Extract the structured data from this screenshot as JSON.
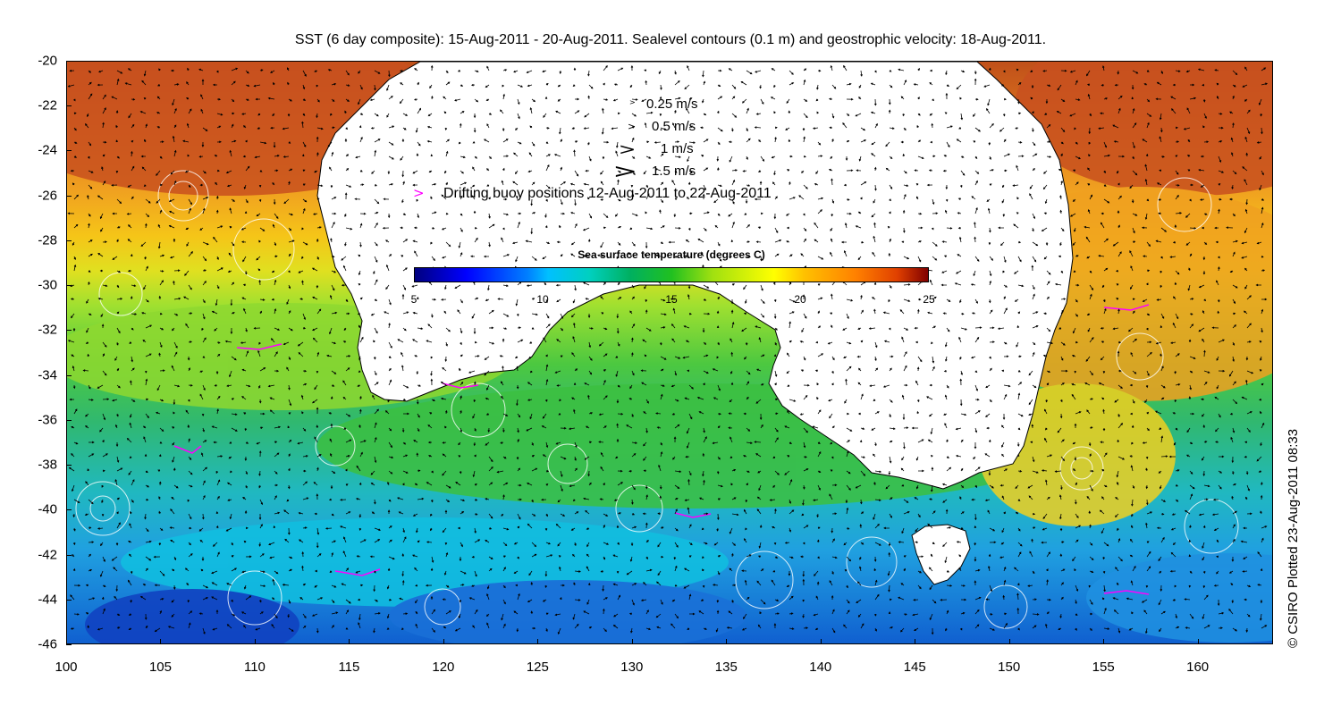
{
  "title": "SST (6 day composite): 15-Aug-2011 - 20-Aug-2011. Sealevel contours (0.1 m) and geostrophic velocity: 18-Aug-2011.",
  "credit": "© CSIRO Plotted 23-Aug-2011 08:33",
  "axes": {
    "y_ticks": [
      "-20",
      "-22",
      "-24",
      "-26",
      "-28",
      "-30",
      "-32",
      "-34",
      "-36",
      "-38",
      "-40",
      "-42",
      "-44",
      "-46"
    ],
    "x_ticks": [
      "100",
      "105",
      "110",
      "115",
      "120",
      "125",
      "130",
      "135",
      "140",
      "145",
      "150",
      "155",
      "160"
    ],
    "lat_range": [
      -46,
      -20
    ],
    "lon_range": [
      100,
      164
    ]
  },
  "legend": {
    "velocity_scale": [
      {
        "label": "0.25 m/s",
        "speed": 0.25
      },
      {
        "label": "0.5 m/s",
        "speed": 0.5
      },
      {
        "label": "1 m/s",
        "speed": 1
      },
      {
        "label": "1.5 m/s",
        "speed": 1.5
      }
    ],
    "buoy_label": "Drifting buoy positions 12-Aug-2011 to 22-Aug-2011",
    "buoy_color": "#ff00ff"
  },
  "colorbar": {
    "title": "Sea surface temperature (degrees C)",
    "ticks": [
      "5",
      "10",
      "15",
      "20",
      "25"
    ],
    "range": [
      5,
      25
    ]
  },
  "colors": {
    "land": "#ffffff",
    "contours": "#ffffff",
    "coastline": "#000000",
    "arrows": "#000000"
  }
}
